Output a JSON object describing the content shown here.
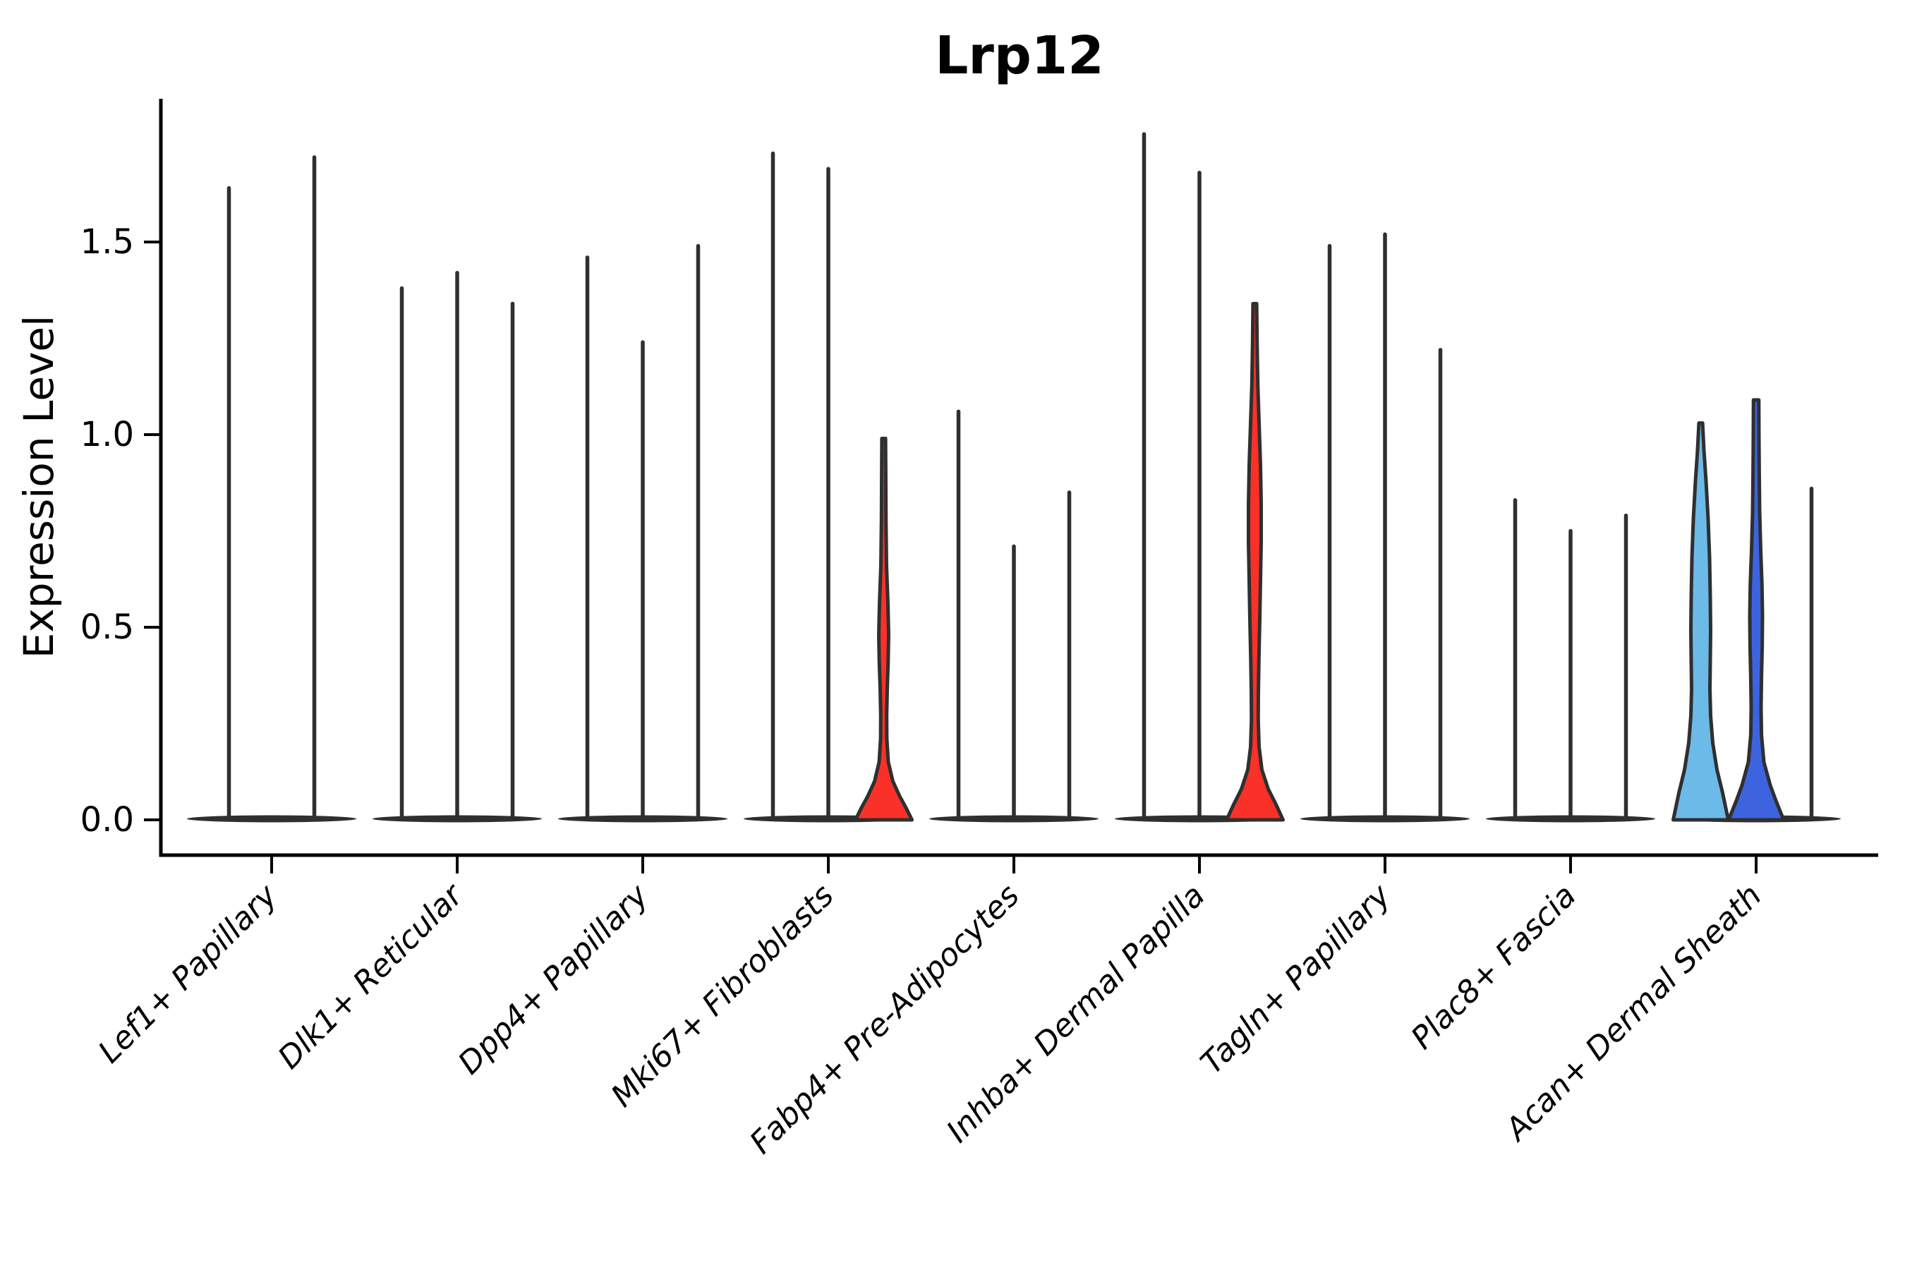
{
  "chart_data": {
    "type": "violin",
    "title": "Lrp12",
    "xlabel": "",
    "ylabel": "Expression Level",
    "ylim": [
      -0.05,
      1.9
    ],
    "grid": false,
    "legend": "none",
    "yticks": {
      "values": [
        0.0,
        0.5,
        1.0,
        1.5
      ],
      "labels": [
        "0.0",
        "0.5",
        "1.0",
        "1.5"
      ]
    },
    "categories": [
      "Lef1+ Papillary",
      "Dlk1+ Reticular",
      "Dpp4+ Papillary",
      "Mki67+ Fibroblasts",
      "Fabp4+ Pre-Adipocytes",
      "Inhba+ Dermal Papilla",
      "Tagln+ Papillary",
      "Plac8+ Fascia",
      "Acan+ Dermal Sheath"
    ],
    "colors": {
      "red": "#f93128",
      "skyblue": "#6cbae8",
      "royalblue": "#3d64de",
      "outline": "#2f2f2f",
      "axis": "#000000"
    },
    "groups": [
      {
        "category": "Lef1+ Papillary",
        "violins": [
          {
            "offset": -60.5,
            "max": 1.64,
            "style": "thin"
          },
          {
            "offset": 60.5,
            "max": 1.72,
            "style": "thin"
          }
        ]
      },
      {
        "category": "Dlk1+ Reticular",
        "violins": [
          {
            "offset": -78.5,
            "max": 1.38,
            "style": "thin"
          },
          {
            "offset": 0,
            "max": 1.42,
            "style": "thin"
          },
          {
            "offset": 78.5,
            "max": 1.34,
            "style": "thin"
          }
        ]
      },
      {
        "category": "Dpp4+ Papillary",
        "violins": [
          {
            "offset": -78.5,
            "max": 1.46,
            "style": "thin"
          },
          {
            "offset": 0,
            "max": 1.24,
            "style": "thin"
          },
          {
            "offset": 78.5,
            "max": 1.49,
            "style": "thin"
          }
        ]
      },
      {
        "category": "Mki67+ Fibroblasts",
        "violins": [
          {
            "offset": -78.5,
            "max": 1.73,
            "style": "thin"
          },
          {
            "offset": 0,
            "max": 1.69,
            "style": "thin"
          },
          {
            "offset": 78.5,
            "max": 0.99,
            "style": "filled",
            "color_key": "red",
            "profile": [
              [
                0.99,
                2.6
              ],
              [
                0.9,
                2.9
              ],
              [
                0.78,
                3.2
              ],
              [
                0.66,
                4.0
              ],
              [
                0.56,
                6.0
              ],
              [
                0.48,
                7.0
              ],
              [
                0.41,
                6.3
              ],
              [
                0.34,
                5.0
              ],
              [
                0.27,
                4.2
              ],
              [
                0.21,
                4.4
              ],
              [
                0.15,
                6.5
              ],
              [
                0.1,
                13
              ],
              [
                0.06,
                23
              ],
              [
                0.03,
                32
              ],
              [
                0,
                40
              ]
            ]
          }
        ]
      },
      {
        "category": "Fabp4+ Pre-Adipocytes",
        "violins": [
          {
            "offset": -78.5,
            "max": 1.06,
            "style": "thin"
          },
          {
            "offset": 0,
            "max": 0.71,
            "style": "thin"
          },
          {
            "offset": 78.5,
            "max": 0.85,
            "style": "thin"
          }
        ]
      },
      {
        "category": "Inhba+ Dermal Papilla",
        "violins": [
          {
            "offset": -78.5,
            "max": 1.78,
            "style": "thin"
          },
          {
            "offset": 0,
            "max": 1.68,
            "style": "thin"
          },
          {
            "offset": 78.5,
            "max": 1.34,
            "style": "filled",
            "color_key": "red",
            "profile": [
              [
                1.34,
                2.6
              ],
              [
                1.24,
                3.2
              ],
              [
                1.13,
                4.2
              ],
              [
                1.02,
                6.2
              ],
              [
                0.92,
                8.0
              ],
              [
                0.82,
                9.0
              ],
              [
                0.72,
                9.0
              ],
              [
                0.62,
                8.0
              ],
              [
                0.52,
                7.0
              ],
              [
                0.42,
                5.8
              ],
              [
                0.33,
                5.0
              ],
              [
                0.26,
                4.8
              ],
              [
                0.19,
                6.0
              ],
              [
                0.13,
                10
              ],
              [
                0.08,
                19
              ],
              [
                0.04,
                30
              ],
              [
                0,
                40
              ]
            ]
          }
        ]
      },
      {
        "category": "Tagln+ Papillary",
        "violins": [
          {
            "offset": -78.5,
            "max": 1.49,
            "style": "thin"
          },
          {
            "offset": 0,
            "max": 1.52,
            "style": "thin"
          },
          {
            "offset": 78.5,
            "max": 1.22,
            "style": "thin"
          }
        ]
      },
      {
        "category": "Plac8+ Fascia",
        "violins": [
          {
            "offset": -78.5,
            "max": 0.83,
            "style": "thin"
          },
          {
            "offset": 0,
            "max": 0.75,
            "style": "thin"
          },
          {
            "offset": 78.5,
            "max": 0.79,
            "style": "thin"
          }
        ]
      },
      {
        "category": "Acan+ Dermal Sheath",
        "violins": [
          {
            "offset": -78.5,
            "max": 1.03,
            "style": "filled",
            "color_key": "skyblue",
            "profile": [
              [
                1.03,
                2.6
              ],
              [
                0.96,
                4.5
              ],
              [
                0.88,
                7.5
              ],
              [
                0.78,
                10.5
              ],
              [
                0.68,
                12.5
              ],
              [
                0.58,
                13.5
              ],
              [
                0.49,
                14.0
              ],
              [
                0.41,
                13.5
              ],
              [
                0.34,
                13.0
              ],
              [
                0.27,
                14.0
              ],
              [
                0.2,
                17
              ],
              [
                0.13,
                23
              ],
              [
                0.07,
                31
              ],
              [
                0,
                39
              ]
            ]
          },
          {
            "offset": 0,
            "max": 1.09,
            "style": "filled",
            "color_key": "royalblue",
            "profile": [
              [
                1.09,
                3.8
              ],
              [
                1.0,
                4.0
              ],
              [
                0.9,
                4.4
              ],
              [
                0.8,
                5.0
              ],
              [
                0.7,
                6.5
              ],
              [
                0.61,
                8.3
              ],
              [
                0.53,
                9.0
              ],
              [
                0.45,
                8.6
              ],
              [
                0.37,
                7.6
              ],
              [
                0.29,
                7.0
              ],
              [
                0.22,
                7.6
              ],
              [
                0.15,
                11
              ],
              [
                0.09,
                20
              ],
              [
                0.05,
                28
              ],
              [
                0,
                39
              ]
            ]
          },
          {
            "offset": 78.5,
            "max": 0.86,
            "style": "thin"
          }
        ]
      }
    ]
  }
}
